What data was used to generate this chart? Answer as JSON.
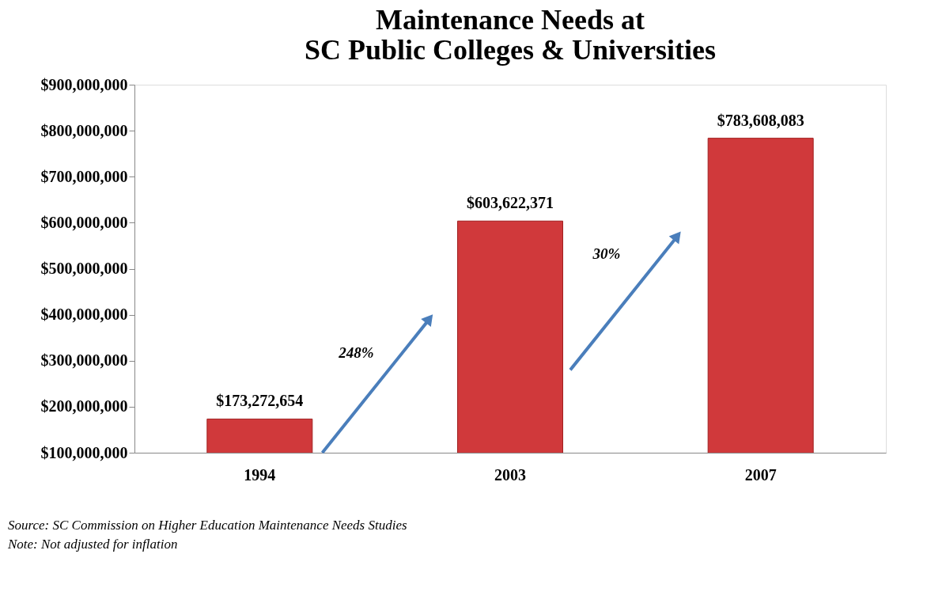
{
  "chart_data": {
    "type": "bar",
    "title": "Maintenance Needs at\nSC Public Colleges & Universities",
    "categories": [
      "1994",
      "2003",
      "2007"
    ],
    "values": [
      173272654,
      603622371,
      783608083
    ],
    "value_labels": [
      "$173,272,654",
      "$603,622,371",
      "$783,608,083"
    ],
    "color": "#d0393b",
    "ylim": [
      100000000,
      900000000
    ],
    "yticks": [
      {
        "value": 100000000,
        "label": "$100,000,000"
      },
      {
        "value": 200000000,
        "label": "$200,000,000"
      },
      {
        "value": 300000000,
        "label": "$300,000,000"
      },
      {
        "value": 400000000,
        "label": "$400,000,000"
      },
      {
        "value": 500000000,
        "label": "$500,000,000"
      },
      {
        "value": 600000000,
        "label": "$600,000,000"
      },
      {
        "value": 700000000,
        "label": "$700,000,000"
      },
      {
        "value": 800000000,
        "label": "$800,000,000"
      },
      {
        "value": 900000000,
        "label": "$900,000,000"
      }
    ],
    "grid": false,
    "annotations": [
      "248%",
      "30%",
      "Source:  SC Commission on Higher Education Maintenance Needs Studies",
      "Note: Not adjusted for inflation"
    ]
  }
}
